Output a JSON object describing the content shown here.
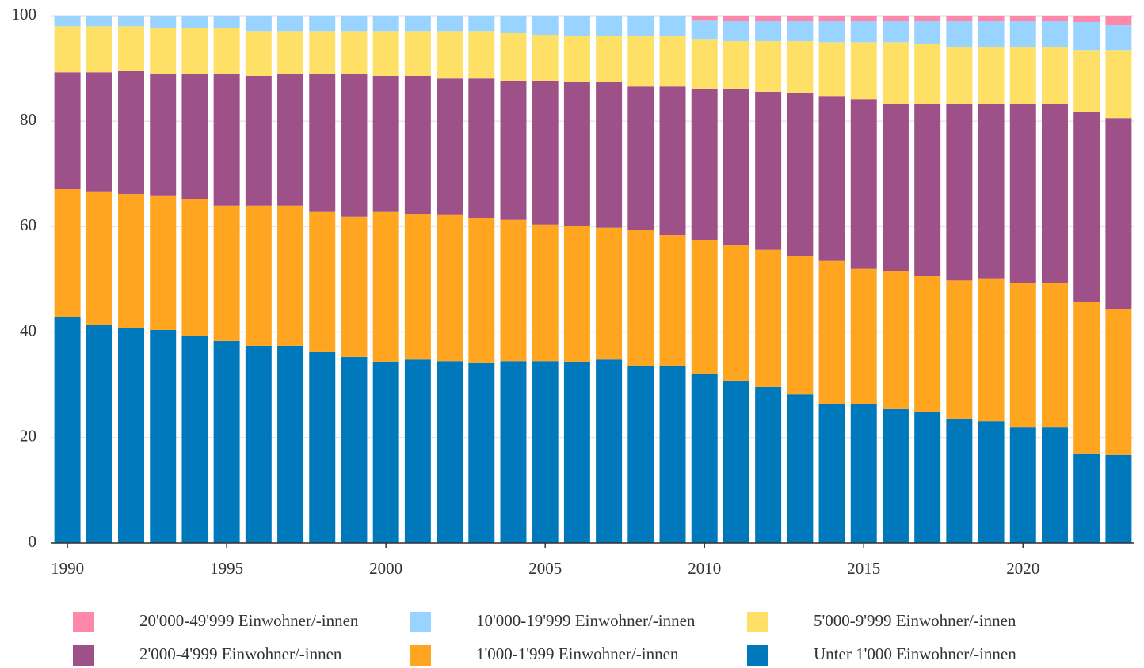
{
  "chart_data": {
    "type": "stacked_bar",
    "x": [
      1990,
      1991,
      1992,
      1993,
      1994,
      1995,
      1996,
      1997,
      1998,
      1999,
      2000,
      2001,
      2002,
      2003,
      2004,
      2005,
      2006,
      2007,
      2008,
      2009,
      2010,
      2011,
      2012,
      2013,
      2014,
      2015,
      2016,
      2017,
      2018,
      2019,
      2020,
      2021,
      2022,
      2023
    ],
    "xlim": [
      1989.5,
      2023.5
    ],
    "xticks": [
      1990,
      1995,
      2000,
      2005,
      2010,
      2015,
      2020
    ],
    "ylim": [
      0,
      100
    ],
    "yticks": [
      0,
      20,
      40,
      60,
      80,
      100
    ],
    "grid": true,
    "series": [
      {
        "name": "20'000-49'999 Einwohner/-innen",
        "color": "#ff88aa",
        "values": [
          null,
          null,
          null,
          null,
          null,
          null,
          null,
          null,
          null,
          null,
          null,
          null,
          null,
          null,
          null,
          null,
          null,
          null,
          null,
          null,
          0.8,
          1.0,
          1.0,
          1.0,
          1.0,
          1.0,
          1.0,
          1.0,
          1.0,
          1.0,
          1.0,
          1.0,
          1.2,
          1.8
        ]
      },
      {
        "name": "10'000-19'999 Einwohner/-innen",
        "color": "#99d3ff",
        "values": [
          2.0,
          2.0,
          2.0,
          2.4,
          2.4,
          2.4,
          2.9,
          2.9,
          2.9,
          2.9,
          2.9,
          2.9,
          2.9,
          2.9,
          3.3,
          3.6,
          3.8,
          3.8,
          3.8,
          3.8,
          3.6,
          3.8,
          3.8,
          3.8,
          4.0,
          4.0,
          4.0,
          4.4,
          4.9,
          4.9,
          5.0,
          5.0,
          5.3,
          4.7
        ]
      },
      {
        "name": "5'000-9'999 Einwohner/-innen",
        "color": "#ffe066",
        "values": [
          8.7,
          8.7,
          8.5,
          8.6,
          8.6,
          8.6,
          8.5,
          8.1,
          8.1,
          8.1,
          8.5,
          8.5,
          9.0,
          9.0,
          9.0,
          8.7,
          8.7,
          8.7,
          9.6,
          9.6,
          9.4,
          9.0,
          9.6,
          9.8,
          10.2,
          10.8,
          11.7,
          11.3,
          10.9,
          10.9,
          10.8,
          10.8,
          11.7,
          12.9
        ]
      },
      {
        "name": "2'000-4'999 Einwohner/-innen",
        "color": "#9e5088",
        "values": [
          22.2,
          22.6,
          23.3,
          23.2,
          23.7,
          25.0,
          24.6,
          25.0,
          26.2,
          27.1,
          25.8,
          26.3,
          25.9,
          26.4,
          26.4,
          27.3,
          27.4,
          27.7,
          27.3,
          28.2,
          28.7,
          29.6,
          30.0,
          30.9,
          31.3,
          32.2,
          31.8,
          32.7,
          33.4,
          33.0,
          33.8,
          33.8,
          36.0,
          36.3
        ]
      },
      {
        "name": "1'000-1'999 Einwohner/-innen",
        "color": "#ffa51f",
        "values": [
          24.2,
          25.4,
          25.4,
          25.4,
          26.1,
          25.7,
          26.6,
          26.6,
          26.6,
          26.6,
          28.4,
          27.5,
          27.7,
          27.6,
          26.8,
          25.9,
          25.7,
          25.0,
          25.8,
          24.9,
          25.4,
          25.8,
          26.0,
          26.3,
          27.2,
          25.7,
          26.1,
          25.8,
          26.2,
          27.1,
          27.5,
          27.5,
          28.8,
          27.6
        ]
      },
      {
        "name": "Unter 1'000 Einwohner/-innen",
        "color": "#0079bc",
        "values": [
          42.9,
          41.3,
          40.8,
          40.4,
          39.2,
          38.3,
          37.4,
          37.4,
          36.2,
          35.3,
          34.4,
          34.8,
          34.5,
          34.1,
          34.5,
          34.5,
          34.4,
          34.8,
          33.5,
          33.5,
          32.1,
          30.8,
          29.6,
          28.2,
          26.3,
          26.3,
          25.4,
          24.8,
          23.6,
          23.1,
          21.9,
          21.9,
          17.0,
          16.7
        ]
      }
    ]
  }
}
